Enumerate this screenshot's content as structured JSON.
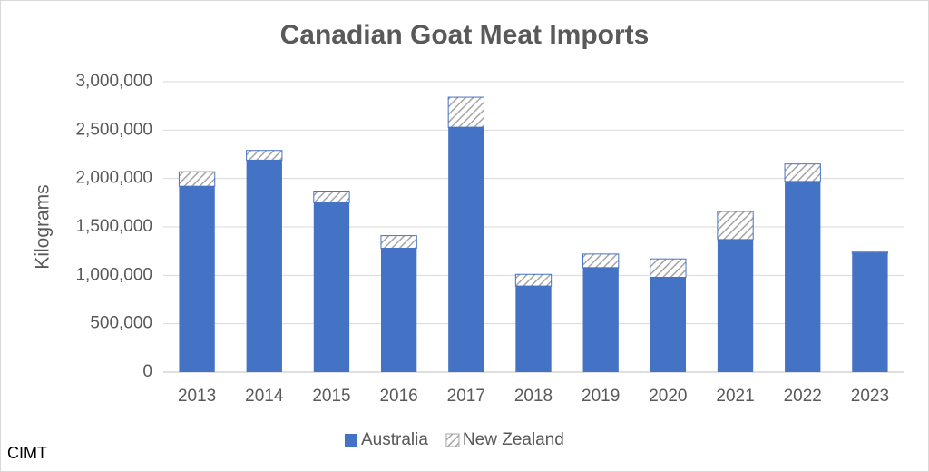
{
  "chart_data": {
    "type": "stacked-bar",
    "title": "Canadian Goat Meat Imports",
    "y_label": "Kilograms",
    "source": "CIMT",
    "categories": [
      "2013",
      "2014",
      "2015",
      "2016",
      "2017",
      "2018",
      "2019",
      "2020",
      "2021",
      "2022",
      "2023"
    ],
    "series": [
      {
        "name": "Australia",
        "color": "#4472c4",
        "pattern": "solid",
        "values": [
          1920000,
          2190000,
          1750000,
          1280000,
          2530000,
          890000,
          1080000,
          980000,
          1370000,
          1970000,
          1230000
        ]
      },
      {
        "name": "New Zealand",
        "color": "#a5a5a5",
        "pattern": "hatch",
        "values": [
          150000,
          100000,
          120000,
          130000,
          310000,
          120000,
          140000,
          190000,
          290000,
          180000,
          10000
        ]
      }
    ],
    "ylim": [
      0,
      3000000
    ],
    "yticks": [
      0,
      {
        "value": 500000,
        "label": "500,000"
      },
      {
        "value": 1000000,
        "label": "1,000,000"
      },
      {
        "value": 1500000,
        "label": "1,500,000"
      },
      {
        "value": 2000000,
        "label": "2,000,000"
      },
      {
        "value": 2500000,
        "label": "2,500,000"
      },
      {
        "value": 3000000,
        "label": "3,000,000"
      }
    ],
    "grid": true,
    "legend": "bottom"
  }
}
